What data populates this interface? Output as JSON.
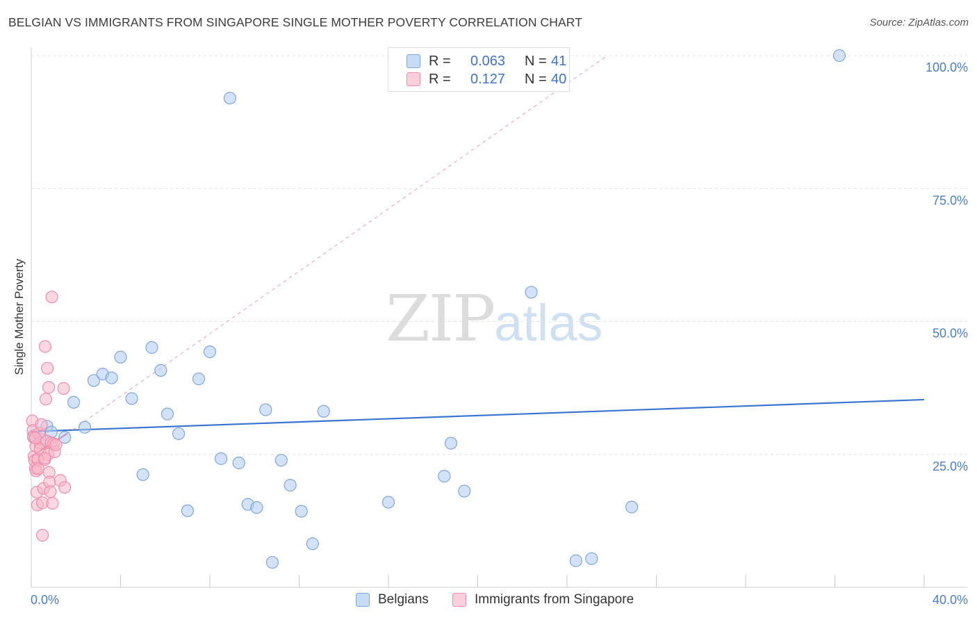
{
  "header": {
    "title": "BELGIAN VS IMMIGRANTS FROM SINGAPORE SINGLE MOTHER POVERTY CORRELATION CHART",
    "source": "Source: ZipAtlas.com"
  },
  "watermark": {
    "zip": "ZIP",
    "atlas": "atlas"
  },
  "legend": {
    "rows": [
      {
        "r_label": "R =",
        "r_value": "0.063",
        "n_label": "N =",
        "n_value": "41",
        "color": "#aecbef"
      },
      {
        "r_label": "R =",
        "r_value": "0.127",
        "n_label": "N =",
        "n_value": "40",
        "color": "#f7b7c9"
      }
    ]
  },
  "bottom_legend": {
    "items": [
      {
        "label": "Belgians",
        "color": "#aecbef"
      },
      {
        "label": "Immigrants from Singapore",
        "color": "#f7b7c9"
      }
    ]
  },
  "chart_data": {
    "type": "scatter",
    "title": "BELGIAN VS IMMIGRANTS FROM SINGAPORE SINGLE MOTHER POVERTY CORRELATION CHART",
    "xlabel": "",
    "ylabel": "Single Mother Poverty",
    "xlim": [
      0,
      40
    ],
    "ylim": [
      0,
      100
    ],
    "x_tick_labels": [
      "0.0%",
      "40.0%"
    ],
    "y_tick_labels": [
      "100.0%",
      "75.0%",
      "50.0%",
      "25.0%"
    ],
    "y_ticks": [
      100,
      75,
      50,
      25
    ],
    "grid": true,
    "legend_position": "top-center",
    "series": [
      {
        "name": "Belgians",
        "color": "#aecbef",
        "stroke": "#7ea7dc",
        "points": [
          [
            0.1,
            28.5
          ],
          [
            0.7,
            30.3
          ],
          [
            1.5,
            28.2
          ],
          [
            1.9,
            34.8
          ],
          [
            2.4,
            30.1
          ],
          [
            2.8,
            38.9
          ],
          [
            3.2,
            40.1
          ],
          [
            3.6,
            39.4
          ],
          [
            4.0,
            43.3
          ],
          [
            4.5,
            35.5
          ],
          [
            5.0,
            21.2
          ],
          [
            5.4,
            45.1
          ],
          [
            5.8,
            40.8
          ],
          [
            6.1,
            32.6
          ],
          [
            6.6,
            28.9
          ],
          [
            7.0,
            14.4
          ],
          [
            7.5,
            39.2
          ],
          [
            8.0,
            44.3
          ],
          [
            8.5,
            24.2
          ],
          [
            8.9,
            92.0
          ],
          [
            9.3,
            23.4
          ],
          [
            9.7,
            15.6
          ],
          [
            10.1,
            15.0
          ],
          [
            10.5,
            33.4
          ],
          [
            10.8,
            4.7
          ],
          [
            11.2,
            23.9
          ],
          [
            11.6,
            19.2
          ],
          [
            12.1,
            14.3
          ],
          [
            12.6,
            8.2
          ],
          [
            13.1,
            33.1
          ],
          [
            16.0,
            16.0
          ],
          [
            18.5,
            20.9
          ],
          [
            18.8,
            27.1
          ],
          [
            19.4,
            18.1
          ],
          [
            22.4,
            55.5
          ],
          [
            24.4,
            5.0
          ],
          [
            25.1,
            5.4
          ],
          [
            26.9,
            15.1
          ],
          [
            36.2,
            100.0
          ],
          [
            0.4,
            27.9
          ],
          [
            0.9,
            29.2
          ]
        ]
      },
      {
        "name": "Immigrants from Singapore",
        "color": "#f7b7c9",
        "stroke": "#ee8eab",
        "points": [
          [
            0.05,
            31.3
          ],
          [
            0.08,
            29.5
          ],
          [
            0.1,
            28.2
          ],
          [
            0.12,
            24.6
          ],
          [
            0.15,
            23.8
          ],
          [
            0.18,
            22.4
          ],
          [
            0.2,
            26.5
          ],
          [
            0.22,
            21.9
          ],
          [
            0.25,
            17.9
          ],
          [
            0.28,
            15.5
          ],
          [
            0.3,
            24.1
          ],
          [
            0.35,
            29.0
          ],
          [
            0.38,
            27.2
          ],
          [
            0.4,
            26.0
          ],
          [
            0.45,
            30.6
          ],
          [
            0.5,
            15.9
          ],
          [
            0.5,
            9.8
          ],
          [
            0.55,
            18.6
          ],
          [
            0.6,
            24.0
          ],
          [
            0.62,
            45.3
          ],
          [
            0.65,
            35.4
          ],
          [
            0.7,
            27.5
          ],
          [
            0.72,
            41.2
          ],
          [
            0.75,
            25.0
          ],
          [
            0.78,
            37.6
          ],
          [
            0.8,
            21.6
          ],
          [
            0.82,
            19.8
          ],
          [
            0.85,
            18.0
          ],
          [
            0.9,
            27.2
          ],
          [
            0.92,
            54.6
          ],
          [
            0.95,
            15.8
          ],
          [
            1.0,
            27.0
          ],
          [
            1.05,
            25.5
          ],
          [
            1.1,
            26.8
          ],
          [
            1.3,
            20.1
          ],
          [
            1.45,
            37.4
          ],
          [
            1.5,
            18.8
          ],
          [
            0.3,
            22.3
          ],
          [
            0.6,
            24.3
          ],
          [
            0.18,
            28.1
          ]
        ]
      }
    ],
    "trendlines": [
      {
        "series": "Belgians",
        "from": [
          0,
          29.3
        ],
        "to": [
          40,
          35.3
        ],
        "style": "solid",
        "color": "#3a76d0"
      },
      {
        "series": "Immigrants from Singapore",
        "from": [
          0,
          24.6
        ],
        "to": [
          1.6,
          28.9
        ],
        "style": "solid",
        "color": "#e05a87"
      },
      {
        "series": "Immigrants from Singapore",
        "from": [
          1.6,
          28.9
        ],
        "to": [
          25.8,
          100
        ],
        "style": "dashed",
        "color": "#e7a0b6"
      }
    ]
  }
}
